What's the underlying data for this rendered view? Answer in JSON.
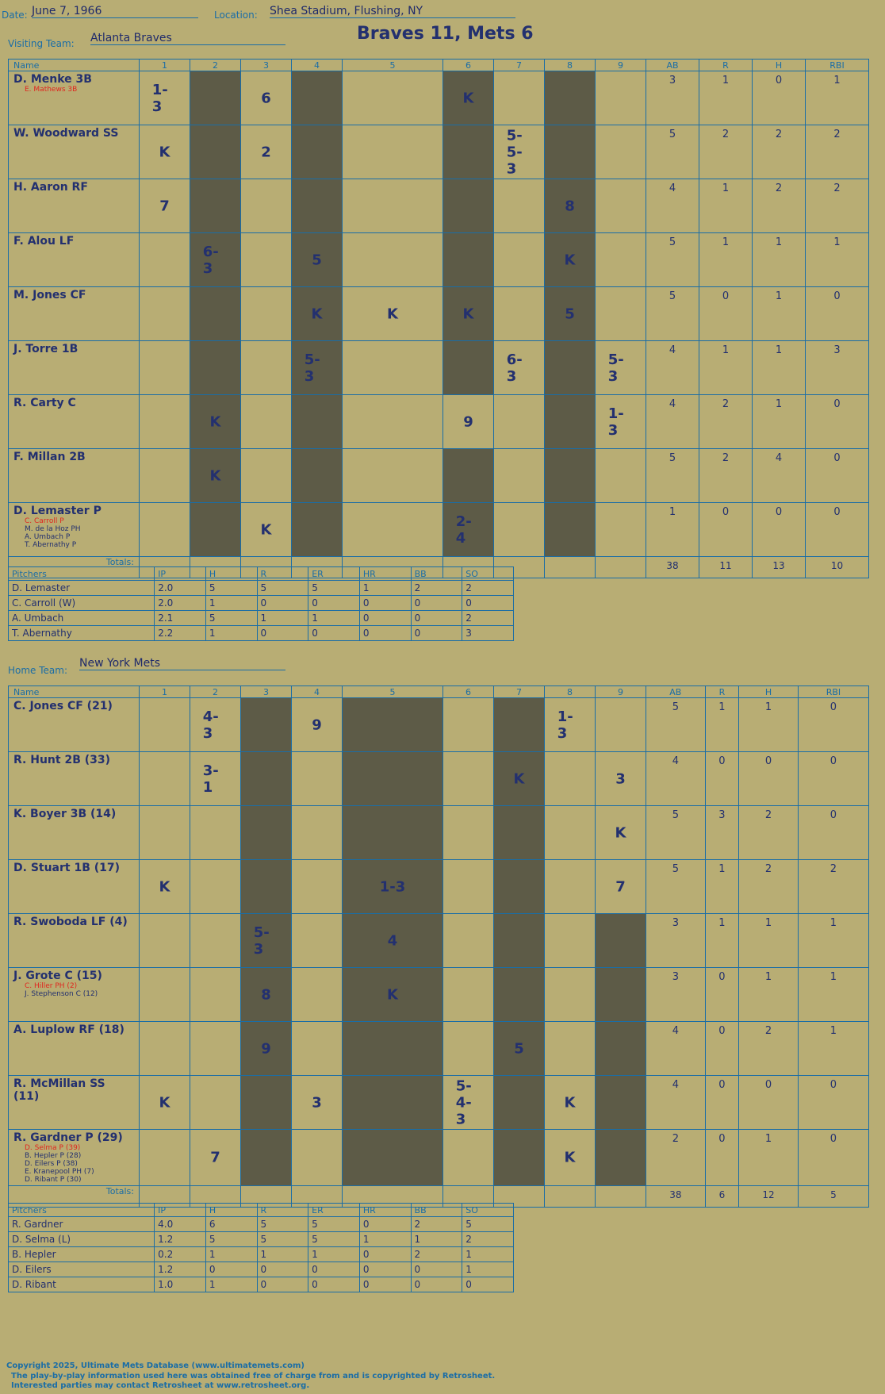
{
  "header": {
    "date_label": "Date:",
    "date": "June 7, 1966",
    "location_label": "Location:",
    "location": "Shea Stadium, Flushing, NY",
    "visiting_label": "Visiting Team:",
    "visiting": "Atlanta Braves",
    "home_label": "Home Team:",
    "home": "New York Mets",
    "result": "Braves 11, Mets 6"
  },
  "cols": {
    "name": "Name",
    "innings": [
      "1",
      "2",
      "3",
      "4",
      "5",
      "6",
      "7",
      "8",
      "9"
    ],
    "stats": [
      "AB",
      "R",
      "H",
      "RBI"
    ]
  },
  "totals_label": "Totals:",
  "visitors": [
    {
      "name": "D. Menke 3B",
      "subs": [
        "E. Mathews 3B"
      ],
      "stats": [
        "3",
        "1",
        "0",
        "1"
      ]
    },
    {
      "name": "W. Woodward SS",
      "subs": [],
      "stats": [
        "5",
        "2",
        "2",
        "2"
      ]
    },
    {
      "name": "H. Aaron RF",
      "subs": [],
      "stats": [
        "4",
        "1",
        "2",
        "2"
      ]
    },
    {
      "name": "F. Alou LF",
      "subs": [],
      "stats": [
        "5",
        "1",
        "1",
        "1"
      ]
    },
    {
      "name": "M. Jones CF",
      "subs": [],
      "stats": [
        "5",
        "0",
        "1",
        "0"
      ]
    },
    {
      "name": "J. Torre 1B",
      "subs": [],
      "stats": [
        "4",
        "1",
        "1",
        "3"
      ]
    },
    {
      "name": "R. Carty C",
      "subs": [],
      "stats": [
        "4",
        "2",
        "1",
        "0"
      ]
    },
    {
      "name": "F. Millan 2B",
      "subs": [],
      "stats": [
        "5",
        "2",
        "4",
        "0"
      ]
    },
    {
      "name": "D. Lemaster P",
      "subs": [
        "C. Carroll P",
        "M. de la Hoz PH",
        "A. Umbach P",
        "T. Abernathy P"
      ],
      "stats": [
        "1",
        "0",
        "0",
        "0"
      ]
    }
  ],
  "visitor_totals": [
    "38",
    "11",
    "13",
    "10"
  ],
  "visitor_marks": [
    [
      "1-3",
      "",
      "6",
      "",
      "",
      "K",
      "",
      "",
      ""
    ],
    [
      "K",
      "",
      "2",
      "",
      "",
      "",
      "5-5-3",
      "",
      ""
    ],
    [
      "7",
      "",
      "",
      "",
      "",
      "",
      "",
      "8",
      ""
    ],
    [
      "",
      "6-3",
      "",
      "5",
      "",
      "",
      "",
      "K",
      ""
    ],
    [
      "",
      "",
      "",
      "K",
      "K",
      "K",
      "",
      "5",
      ""
    ],
    [
      "",
      "",
      "",
      "5-3",
      "",
      "",
      "6-3",
      "",
      "5-3"
    ],
    [
      "",
      "K",
      "",
      "",
      "",
      "9",
      "",
      "",
      "1-3"
    ],
    [
      "",
      "K",
      "",
      "",
      "",
      "",
      "",
      "",
      ""
    ],
    [
      "",
      "",
      "K",
      "",
      "",
      "2-4",
      "",
      "",
      ""
    ]
  ],
  "pitch_cols": [
    "Pitchers",
    "IP",
    "H",
    "R",
    "ER",
    "HR",
    "BB",
    "SO"
  ],
  "visitor_pitchers": [
    [
      "D. Lemaster",
      "2.0",
      "5",
      "5",
      "5",
      "1",
      "2",
      "2"
    ],
    [
      "C. Carroll (W)",
      "2.0",
      "1",
      "0",
      "0",
      "0",
      "0",
      "0"
    ],
    [
      "A. Umbach",
      "2.1",
      "5",
      "1",
      "1",
      "0",
      "0",
      "2"
    ],
    [
      "T. Abernathy",
      "2.2",
      "1",
      "0",
      "0",
      "0",
      "0",
      "3"
    ]
  ],
  "home": [
    {
      "name": "C. Jones CF (21)",
      "subs": [],
      "stats": [
        "5",
        "1",
        "1",
        "0"
      ]
    },
    {
      "name": "R. Hunt 2B (33)",
      "subs": [],
      "stats": [
        "4",
        "0",
        "0",
        "0"
      ]
    },
    {
      "name": "K. Boyer 3B (14)",
      "subs": [],
      "stats": [
        "5",
        "3",
        "2",
        "0"
      ]
    },
    {
      "name": "D. Stuart 1B (17)",
      "subs": [],
      "stats": [
        "5",
        "1",
        "2",
        "2"
      ]
    },
    {
      "name": "R. Swoboda LF (4)",
      "subs": [],
      "stats": [
        "3",
        "1",
        "1",
        "1"
      ]
    },
    {
      "name": "J. Grote C (15)",
      "subs": [
        "C. Hiller PH (2)",
        "J. Stephenson C (12)"
      ],
      "stats": [
        "3",
        "0",
        "1",
        "1"
      ]
    },
    {
      "name": "A. Luplow RF (18)",
      "subs": [],
      "stats": [
        "4",
        "0",
        "2",
        "1"
      ]
    },
    {
      "name": "R. McMillan SS (11)",
      "subs": [],
      "stats": [
        "4",
        "0",
        "0",
        "0"
      ]
    },
    {
      "name": "R. Gardner P (29)",
      "subs": [
        "D. Selma P (39)",
        "B. Hepler P (28)",
        "D. Eilers P (38)",
        "E. Kranepool PH (7)",
        "D. Ribant P (30)"
      ],
      "stats": [
        "2",
        "0",
        "1",
        "0"
      ]
    }
  ],
  "home_totals": [
    "38",
    "6",
    "12",
    "5"
  ],
  "home_marks": [
    [
      "",
      "4-3",
      "",
      "9",
      "",
      "",
      "",
      "1-3",
      ""
    ],
    [
      "",
      "3-1",
      "",
      "",
      "",
      "",
      "K",
      "",
      "3"
    ],
    [
      "",
      "",
      "",
      "",
      "",
      "",
      "",
      "",
      "K"
    ],
    [
      "K",
      "",
      "",
      "",
      "1-3",
      "",
      "",
      "",
      "7"
    ],
    [
      "",
      "",
      "5-3",
      "",
      "4",
      "",
      "",
      "",
      ""
    ],
    [
      "",
      "",
      "8",
      "",
      "K",
      "",
      "",
      "",
      ""
    ],
    [
      "",
      "",
      "9",
      "",
      "",
      "",
      "5",
      "",
      ""
    ],
    [
      "K",
      "",
      "",
      "3",
      "",
      "5-4-3",
      "",
      "K",
      ""
    ],
    [
      "",
      "7",
      "",
      "",
      "",
      "",
      "",
      "K",
      ""
    ]
  ],
  "home_pitchers": [
    [
      "R. Gardner",
      "4.0",
      "6",
      "5",
      "5",
      "0",
      "2",
      "5"
    ],
    [
      "D. Selma (L)",
      "1.2",
      "5",
      "5",
      "5",
      "1",
      "1",
      "2"
    ],
    [
      "B. Hepler",
      "0.2",
      "1",
      "1",
      "1",
      "0",
      "2",
      "1"
    ],
    [
      "D. Eilers",
      "1.2",
      "0",
      "0",
      "0",
      "0",
      "0",
      "1"
    ],
    [
      "D. Ribant",
      "1.0",
      "1",
      "0",
      "0",
      "0",
      "0",
      "0"
    ]
  ],
  "footer": [
    "Copyright 2025, Ultimate Mets Database (www.ultimatemets.com)",
    "The play-by-play information used here was obtained free of charge from and is copyrighted by Retrosheet.",
    "Interested parties may contact Retrosheet at www.retrosheet.org."
  ]
}
